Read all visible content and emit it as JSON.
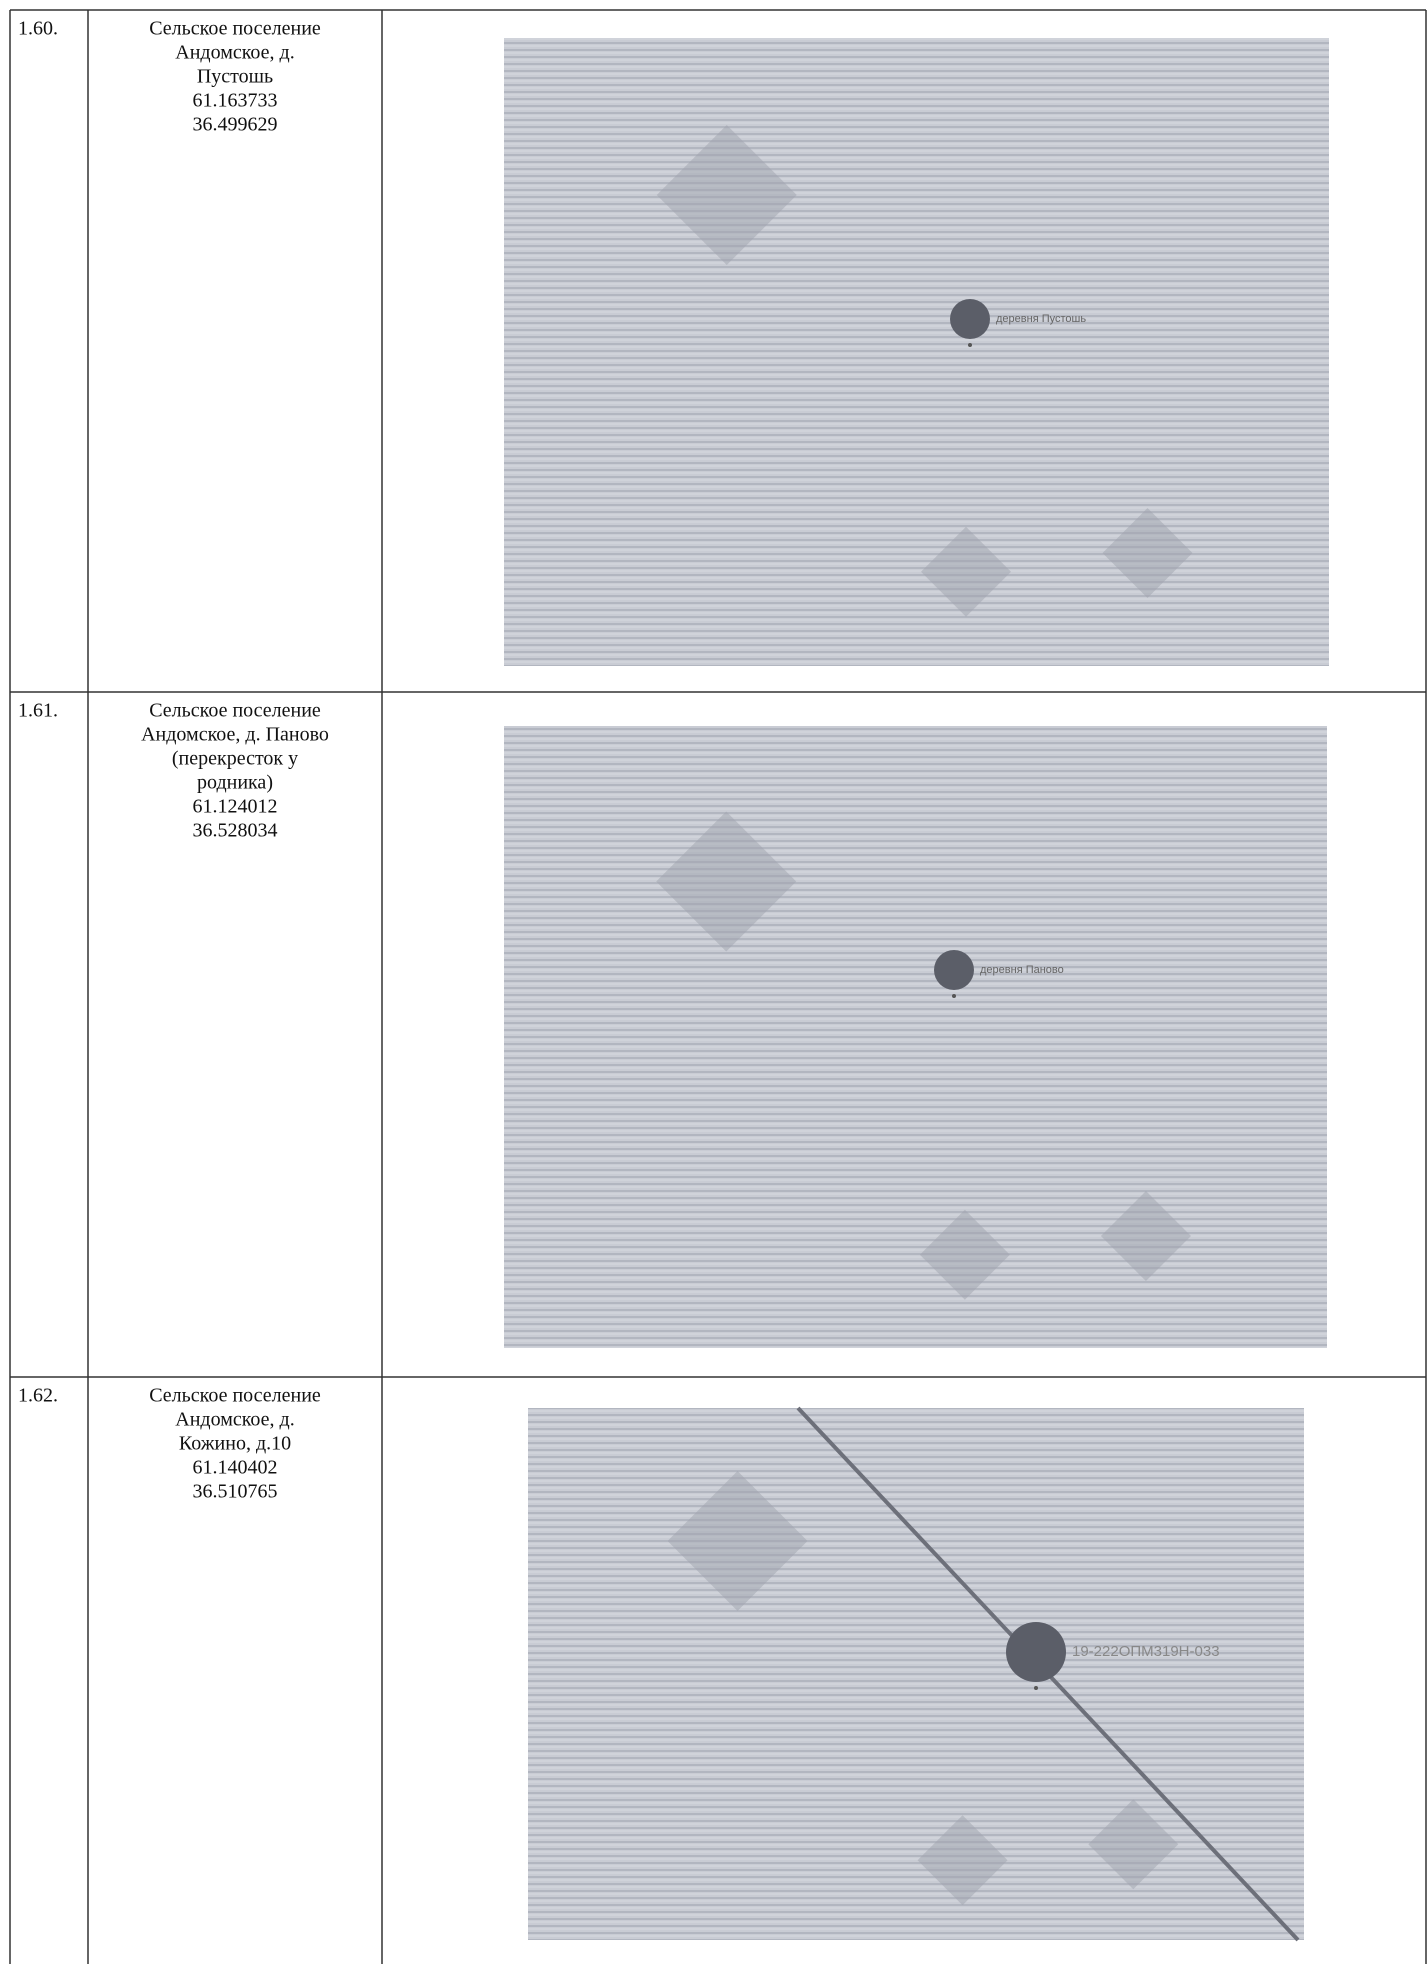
{
  "table": {
    "rows": [
      {
        "number": "1.60.",
        "lines": [
          "Сельское поселение",
          "Андомское, д.",
          "Пустошь",
          "61.163733",
          "36.499629"
        ],
        "map_label": "деревня Пустошь"
      },
      {
        "number": "1.61.",
        "lines": [
          "Сельское поселение",
          "Андомское, д. Паново",
          "(перекресток у",
          "родника)",
          "61.124012",
          "36.528034"
        ],
        "map_label": "деревня Паново"
      },
      {
        "number": "1.62.",
        "lines": [
          "Сельское поселение",
          "Андомское, д.",
          "Кожино, д.10",
          "61.140402",
          "36.510765"
        ],
        "map_label": "19-222ОПМ319Н-033"
      }
    ]
  }
}
